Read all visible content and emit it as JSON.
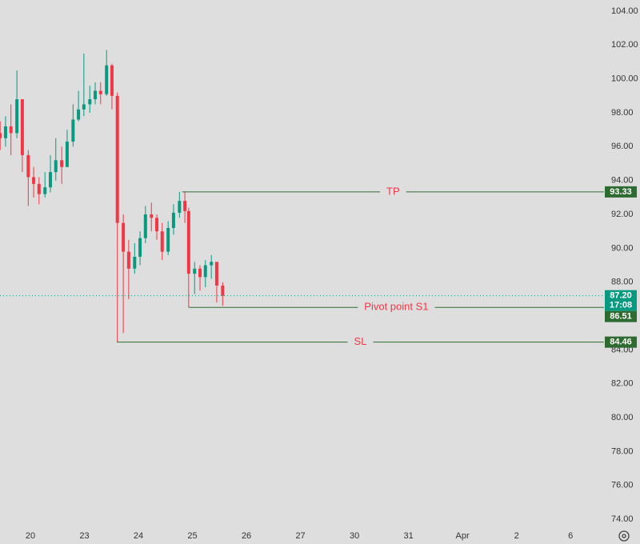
{
  "chart_data": {
    "type": "candlestick",
    "x": [
      -0.56,
      -0.46,
      -0.36,
      -0.25,
      -0.15,
      -0.04,
      0.06,
      0.16,
      0.27,
      0.37,
      0.47,
      0.58,
      0.68,
      0.79,
      0.89,
      0.99,
      1.1,
      1.2,
      1.3,
      1.41,
      1.51,
      1.61,
      1.72,
      1.82,
      1.93,
      2.03,
      2.13,
      2.24,
      2.34,
      2.44,
      2.55,
      2.65,
      2.76,
      2.86,
      2.93,
      3.04,
      3.14,
      3.24,
      3.35,
      3.45,
      3.56
    ],
    "open": [
      96.8,
      96.5,
      97.2,
      96.8,
      98.8,
      95.5,
      94.2,
      93.8,
      93.2,
      93.6,
      94.5,
      95.2,
      94.8,
      96.3,
      97.6,
      98.2,
      98.5,
      98.8,
      99.3,
      99.1,
      100.8,
      99,
      91.5,
      89.8,
      88.8,
      89.5,
      90.6,
      92,
      91.8,
      91,
      89.8,
      91.2,
      92.1,
      92.8,
      92.2,
      88.5,
      88.8,
      88.3,
      89,
      89.2,
      87.8
    ],
    "high": [
      97.5,
      97.8,
      98.5,
      100.5,
      98.8,
      95.8,
      94.8,
      94.2,
      94.5,
      95.5,
      96.5,
      96,
      97,
      98.5,
      99.3,
      101.5,
      99.6,
      99.8,
      99.8,
      101.7,
      100.9,
      99.2,
      92,
      90.5,
      90.3,
      91,
      92.5,
      92.7,
      92,
      91.5,
      91.6,
      92.6,
      93.33,
      93.33,
      92.4,
      89.2,
      89,
      89.3,
      89.6,
      89,
      88
    ],
    "low": [
      95.8,
      96,
      95.5,
      96.5,
      94.5,
      92.5,
      93,
      92.6,
      93,
      93.3,
      94,
      93.8,
      94.8,
      96,
      97.5,
      97.8,
      98,
      98.5,
      98.5,
      99,
      98.2,
      84.46,
      85,
      87,
      88.5,
      89,
      90.3,
      91,
      90.5,
      89.3,
      89.6,
      90.8,
      91.8,
      91.5,
      86.51,
      87.3,
      87.5,
      87.7,
      88.2,
      86.8,
      86.6
    ],
    "close": [
      96.5,
      97.2,
      96.8,
      98.8,
      95.5,
      94.2,
      93.8,
      93.2,
      93.6,
      94.5,
      95.2,
      94.8,
      96.3,
      97.6,
      98.2,
      98.5,
      98.8,
      99.3,
      99.1,
      100.8,
      99,
      91.5,
      89.8,
      88.8,
      89.5,
      90.6,
      92,
      91.8,
      91,
      89.8,
      91.2,
      92.1,
      92.8,
      92.2,
      88.5,
      88.8,
      88.3,
      89,
      89.2,
      87.8,
      87.2
    ],
    "up_color": "#089981",
    "down_color": "#f23645",
    "xlim": [
      -0.563,
      10.62
    ],
    "xticks": [
      {
        "value": 0,
        "label": "20"
      },
      {
        "value": 1,
        "label": "23"
      },
      {
        "value": 2,
        "label": "24"
      },
      {
        "value": 3,
        "label": "25"
      },
      {
        "value": 4,
        "label": "26"
      },
      {
        "value": 5,
        "label": "27"
      },
      {
        "value": 6,
        "label": "30"
      },
      {
        "value": 7,
        "label": "31"
      },
      {
        "value": 8,
        "label": "Apr"
      },
      {
        "value": 9,
        "label": "2"
      },
      {
        "value": 10,
        "label": "6"
      }
    ],
    "ylim": [
      73.58,
      104.66
    ],
    "yticks": [
      {
        "value": 74,
        "label": "74.00"
      },
      {
        "value": 76,
        "label": "76.00"
      },
      {
        "value": 78,
        "label": "78.00"
      },
      {
        "value": 80,
        "label": "80.00"
      },
      {
        "value": 82,
        "label": "82.00"
      },
      {
        "value": 84,
        "label": "84.00"
      },
      {
        "value": 86,
        "label": "86.00"
      },
      {
        "value": 88,
        "label": "88.00"
      },
      {
        "value": 90,
        "label": "90.00"
      },
      {
        "value": 92,
        "label": "92.00"
      },
      {
        "value": 94,
        "label": "94.00"
      },
      {
        "value": 96,
        "label": "96.00"
      },
      {
        "value": 98,
        "label": "98.00"
      },
      {
        "value": 100,
        "label": "100.00"
      },
      {
        "value": 102,
        "label": "102.00"
      },
      {
        "value": 104,
        "label": "104.00"
      }
    ],
    "levels": [
      {
        "name": "TP",
        "value": 93.33,
        "start": 2.81,
        "color": "#2e6b30"
      },
      {
        "name": "Pivot point S1",
        "value": 86.51,
        "start": 2.93,
        "color": "#2e6b30"
      },
      {
        "name": "SL",
        "value": 84.46,
        "start": 1.6,
        "color": "#2e6b30"
      }
    ],
    "last_price": {
      "value": 87.2,
      "label": "87.20",
      "countdown": "17:08",
      "color": "#089981"
    }
  }
}
